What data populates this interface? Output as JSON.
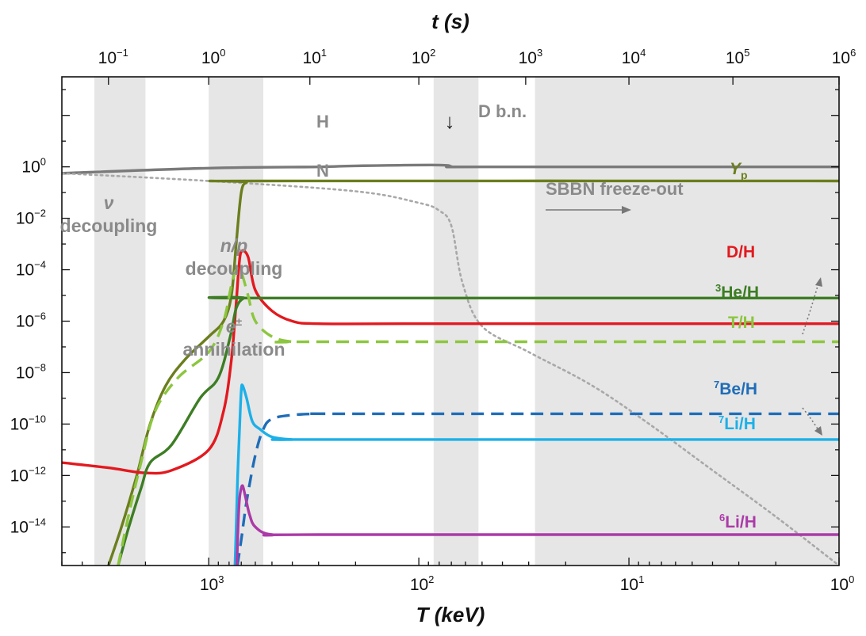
{
  "chart_data": {
    "type": "line",
    "title": "",
    "xlabel": "T (keV)",
    "x2label": "t (s)",
    "ylabel": "",
    "x_scale": "log",
    "x_reversed": true,
    "xlim_keV": [
      5000,
      1
    ],
    "ylim_log10": [
      -15.5,
      3.5
    ],
    "grid": false,
    "x_ticks": [
      {
        "base": "10",
        "exp": "3",
        "value_keV": 1000
      },
      {
        "base": "10",
        "exp": "2",
        "value_keV": 100
      },
      {
        "base": "10",
        "exp": "1",
        "value_keV": 10
      },
      {
        "base": "10",
        "exp": "0",
        "value_keV": 1
      }
    ],
    "top_ticks": [
      {
        "base": "10",
        "exp": "−1",
        "value_s": 0.1,
        "at_keV": 3000
      },
      {
        "base": "10",
        "exp": "0",
        "value_s": 1,
        "at_keV": 1000
      },
      {
        "base": "10",
        "exp": "1",
        "value_s": 10,
        "at_keV": 330
      },
      {
        "base": "10",
        "exp": "2",
        "value_s": 100,
        "at_keV": 100
      },
      {
        "base": "10",
        "exp": "3",
        "value_s": 1000,
        "at_keV": 31
      },
      {
        "base": "10",
        "exp": "4",
        "value_s": 10000,
        "at_keV": 10
      },
      {
        "base": "10",
        "exp": "5",
        "value_s": 100000,
        "at_keV": 3.2
      },
      {
        "base": "10",
        "exp": "6",
        "value_s": 1000000,
        "at_keV": 1
      }
    ],
    "y_ticks": [
      {
        "base": "10",
        "exp": "0",
        "log10": 0
      },
      {
        "base": "10",
        "exp": "−2",
        "log10": -2
      },
      {
        "base": "10",
        "exp": "−4",
        "log10": -4
      },
      {
        "base": "10",
        "exp": "−6",
        "log10": -6
      },
      {
        "base": "10",
        "exp": "−8",
        "log10": -8
      },
      {
        "base": "10",
        "exp": "−10",
        "log10": -10
      },
      {
        "base": "10",
        "exp": "−12",
        "log10": -12
      },
      {
        "base": "10",
        "exp": "−14",
        "log10": -14
      }
    ],
    "shaded_bands_keV": [
      {
        "name": "nu-decoupling",
        "from": 3500,
        "to": 2000
      },
      {
        "name": "np-decoupling",
        "from": 1000,
        "to": 550
      },
      {
        "name": "bbn",
        "from": 85,
        "to": 52
      },
      {
        "name": "freeze-out",
        "from": 28,
        "to": 1
      }
    ],
    "series": [
      {
        "name": "H",
        "color": "#7a7a7a",
        "style": "solid",
        "points": [
          [
            5000,
            -0.25
          ],
          [
            1000,
            -0.05
          ],
          [
            300,
            0.0
          ],
          [
            200,
            0.04
          ],
          [
            80,
            0.07
          ],
          [
            68,
            0.0
          ],
          [
            50,
            0.0
          ],
          [
            1,
            0.0
          ]
        ]
      },
      {
        "name": "N",
        "color": "#a8a8a8",
        "style": "dotted",
        "points": [
          [
            5000,
            -0.25
          ],
          [
            1000,
            -0.55
          ],
          [
            200,
            -0.95
          ],
          [
            100,
            -1.4
          ],
          [
            80,
            -1.7
          ],
          [
            70,
            -2.3
          ],
          [
            62,
            -4.5
          ],
          [
            50,
            -6.2
          ],
          [
            30,
            -7.2
          ],
          [
            15,
            -8.5
          ],
          [
            8,
            -10.0
          ],
          [
            4,
            -11.8
          ],
          [
            2,
            -13.6
          ],
          [
            1,
            -15.5
          ]
        ]
      },
      {
        "name": "Yp",
        "color": "#6b7e1e",
        "style": "solid",
        "points": [
          [
            3000,
            -15.5
          ],
          [
            2600,
            -14.0
          ],
          [
            2200,
            -12.0
          ],
          [
            1900,
            -10.0
          ],
          [
            1600,
            -8.5
          ],
          [
            1300,
            -7.5
          ],
          [
            1000,
            -6.6
          ],
          [
            850,
            -6.0
          ],
          [
            780,
            -5.0
          ],
          [
            740,
            -3.0
          ],
          [
            700,
            -1.0
          ],
          [
            660,
            -0.6
          ],
          [
            600,
            -0.55
          ],
          [
            1,
            -0.55
          ]
        ]
      },
      {
        "name": "D/H",
        "color": "#e2191f",
        "style": "solid",
        "points": [
          [
            5000,
            -11.5
          ],
          [
            3000,
            -11.7
          ],
          [
            2000,
            -11.9
          ],
          [
            1500,
            -11.8
          ],
          [
            1000,
            -11.0
          ],
          [
            850,
            -9.5
          ],
          [
            780,
            -7.5
          ],
          [
            740,
            -5.3
          ],
          [
            720,
            -4.0
          ],
          [
            700,
            -3.3
          ],
          [
            650,
            -3.5
          ],
          [
            600,
            -4.8
          ],
          [
            500,
            -5.6
          ],
          [
            400,
            -6.0
          ],
          [
            300,
            -6.1
          ],
          [
            100,
            -6.1
          ],
          [
            1,
            -6.1
          ]
        ]
      },
      {
        "name": "3He/H",
        "color": "#3d7d24",
        "style": "solid",
        "points": [
          [
            2700,
            -15.5
          ],
          [
            2400,
            -14.0
          ],
          [
            2100,
            -12.5
          ],
          [
            1900,
            -11.5
          ],
          [
            1500,
            -10.8
          ],
          [
            1100,
            -9.0
          ],
          [
            900,
            -8.2
          ],
          [
            790,
            -6.6
          ],
          [
            740,
            -5.5
          ],
          [
            680,
            -5.1
          ],
          [
            600,
            -5.1
          ],
          [
            1,
            -5.1
          ]
        ]
      },
      {
        "name": "T/H",
        "color": "#8cc63f",
        "style": "dashed",
        "points": [
          [
            2700,
            -15.5
          ],
          [
            2400,
            -13.5
          ],
          [
            2100,
            -11.5
          ],
          [
            1800,
            -9.5
          ],
          [
            1400,
            -8.2
          ],
          [
            1000,
            -7.2
          ],
          [
            850,
            -6.0
          ],
          [
            780,
            -4.6
          ],
          [
            740,
            -4.0
          ],
          [
            700,
            -4.1
          ],
          [
            650,
            -5.0
          ],
          [
            600,
            -6.0
          ],
          [
            500,
            -6.6
          ],
          [
            400,
            -6.8
          ],
          [
            300,
            -6.8
          ],
          [
            1,
            -6.8
          ]
        ]
      },
      {
        "name": "7Be/H",
        "color": "#1f6db8",
        "style": "dashed",
        "points": [
          [
            730,
            -15.5
          ],
          [
            700,
            -14.5
          ],
          [
            660,
            -13.0
          ],
          [
            600,
            -11.2
          ],
          [
            550,
            -10.2
          ],
          [
            500,
            -9.8
          ],
          [
            400,
            -9.65
          ],
          [
            300,
            -9.6
          ],
          [
            200,
            -9.6
          ],
          [
            1,
            -9.6
          ]
        ]
      },
      {
        "name": "7Li/H",
        "color": "#1cb0e8",
        "style": "solid",
        "points": [
          [
            750,
            -15.5
          ],
          [
            740,
            -14.0
          ],
          [
            728,
            -12.0
          ],
          [
            712,
            -10.0
          ],
          [
            700,
            -8.7
          ],
          [
            690,
            -8.5
          ],
          [
            660,
            -9.0
          ],
          [
            620,
            -9.9
          ],
          [
            570,
            -10.2
          ],
          [
            500,
            -10.5
          ],
          [
            400,
            -10.6
          ],
          [
            300,
            -10.6
          ],
          [
            1,
            -10.6
          ]
        ]
      },
      {
        "name": "6Li/H",
        "color": "#ab3aa8",
        "style": "solid",
        "points": [
          [
            735,
            -15.5
          ],
          [
            725,
            -14.0
          ],
          [
            715,
            -13.0
          ],
          [
            705,
            -12.6
          ],
          [
            690,
            -12.4
          ],
          [
            670,
            -12.8
          ],
          [
            640,
            -13.5
          ],
          [
            600,
            -14.0
          ],
          [
            500,
            -14.3
          ],
          [
            300,
            -14.3
          ],
          [
            1,
            -14.3
          ]
        ]
      }
    ],
    "annotations": {
      "nu_symbol": "ν",
      "nu_decoupling": "decoupling",
      "np_symbol": "n/p",
      "np_decoupling": "decoupling",
      "epm_e": "e",
      "epm_pm": "±",
      "epm_annihilation": "annihilation",
      "dbn": "D b.n.",
      "dbn_arrow": "↓",
      "freeze_out": "SBBN freeze-out",
      "h_label": "H",
      "n_label": "N"
    },
    "curve_labels": {
      "yp_main": "Y",
      "yp_sub": "p",
      "dh": "D/H",
      "he3_sup": "3",
      "he3_main": "He/H",
      "th": "T/H",
      "be7_sup": "7",
      "be7_main": "Be/H",
      "li7_sup": "7",
      "li7_main": "Li/H",
      "li6_sup": "6",
      "li6_main": "Li/H"
    }
  }
}
